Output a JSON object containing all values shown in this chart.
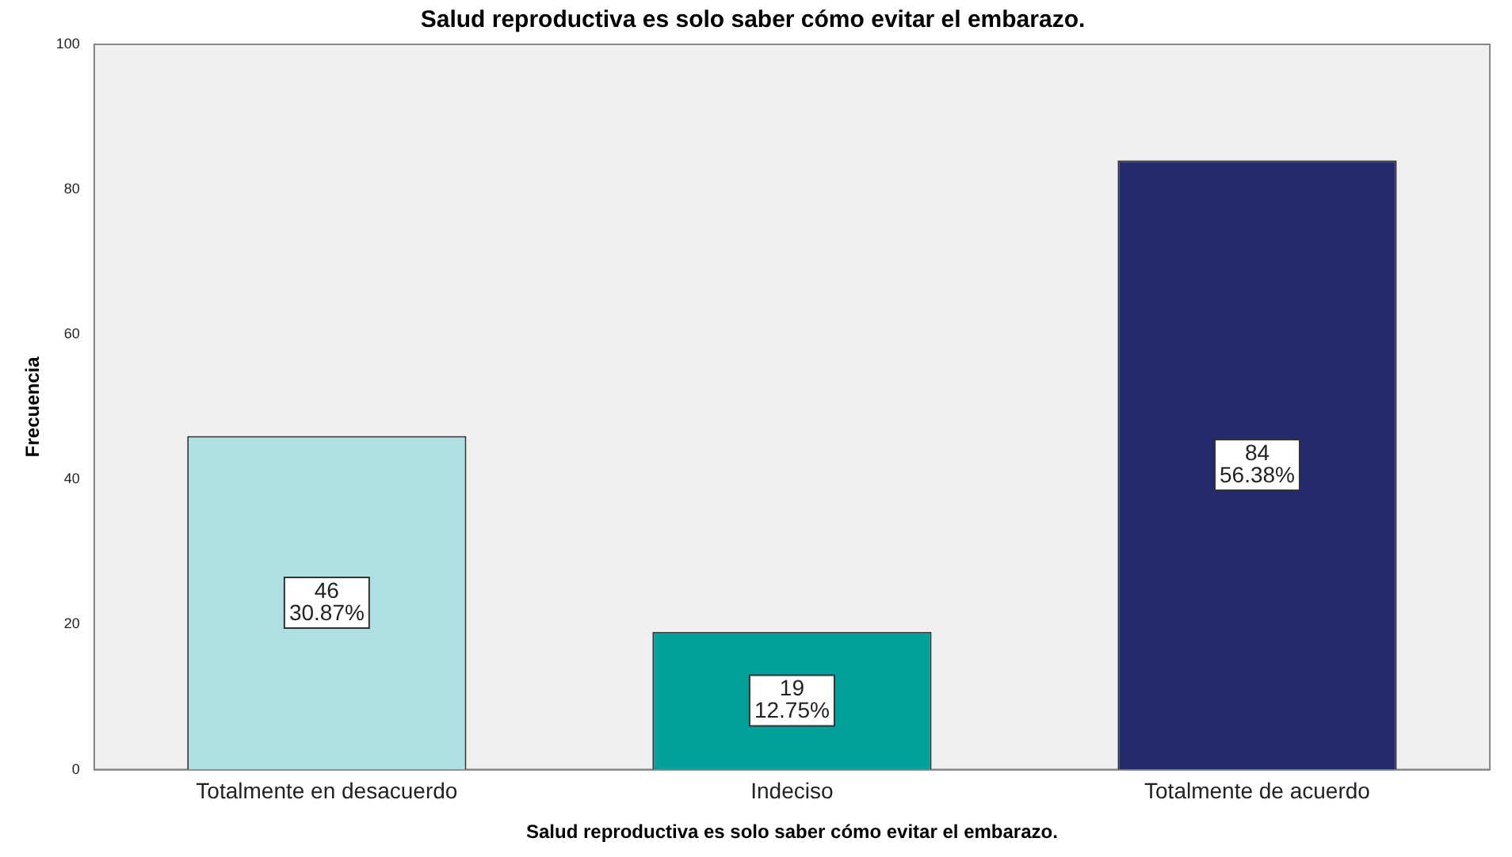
{
  "chart_data": {
    "type": "bar",
    "title": "Salud reproductiva es solo saber cómo evitar el embarazo.",
    "xlabel": "Salud reproductiva es solo saber cómo evitar el embarazo.",
    "ylabel": "Frecuencia",
    "categories": [
      "Totalmente en desacuerdo",
      "Indeciso",
      "Totalmente de acuerdo"
    ],
    "values": [
      46,
      19,
      84
    ],
    "colors": [
      "#aee0e2",
      "#03a09c",
      "#242a6c"
    ],
    "value_labels": [
      "46\n30.87%",
      "19\n12.75%",
      "84\n56.38%"
    ],
    "ylim": [
      0,
      100
    ],
    "yticks": [
      0,
      20,
      40,
      60,
      80,
      100
    ],
    "grid": false,
    "legend": false
  }
}
